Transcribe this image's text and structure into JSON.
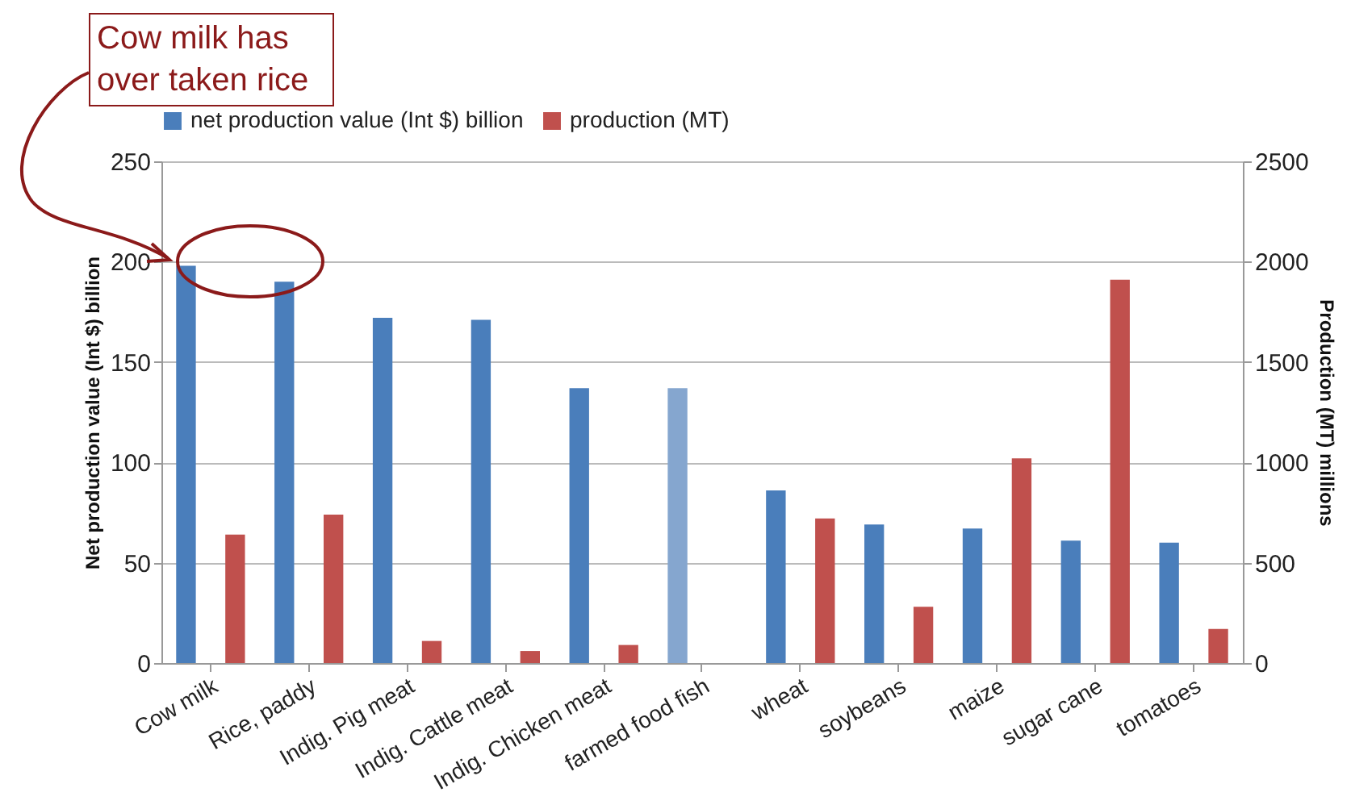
{
  "chart_data": {
    "type": "bar",
    "categories": [
      "Cow milk",
      "Rice, paddy",
      "Indig. Pig meat",
      "Indig. Cattle meat",
      "Indig. Chicken meat",
      "farmed food fish",
      "wheat",
      "soybeans",
      "maize",
      "sugar cane",
      "tomatoes"
    ],
    "series": [
      {
        "name": "net production value (Int $) billion",
        "color": "#4a7ebb",
        "colors": [
          "#4a7ebb",
          "#4a7ebb",
          "#4a7ebb",
          "#4a7ebb",
          "#4a7ebb",
          "#85a6cf",
          "#4a7ebb",
          "#4a7ebb",
          "#4a7ebb",
          "#4a7ebb",
          "#4a7ebb"
        ],
        "values": [
          198,
          190,
          172,
          171,
          137,
          137,
          86,
          69,
          67,
          61,
          60
        ]
      },
      {
        "name": "production (MT)",
        "color": "#c0504d",
        "axis": "y2",
        "values": [
          640,
          740,
          110,
          60,
          90,
          null,
          720,
          280,
          1020,
          1910,
          170
        ]
      }
    ],
    "ylabel": "Net production value (Int $) billion",
    "y2label": "Production (MT) millions",
    "ylim": [
      0,
      250
    ],
    "yticks": [
      0,
      50,
      100,
      150,
      200,
      250
    ],
    "y2lim": [
      0,
      2500
    ],
    "y2ticks": [
      0,
      500,
      1000,
      1500,
      2000,
      2500
    ],
    "grid": "y",
    "legend": "top",
    "annotations": [
      "Cow milk has over taken rice"
    ]
  }
}
